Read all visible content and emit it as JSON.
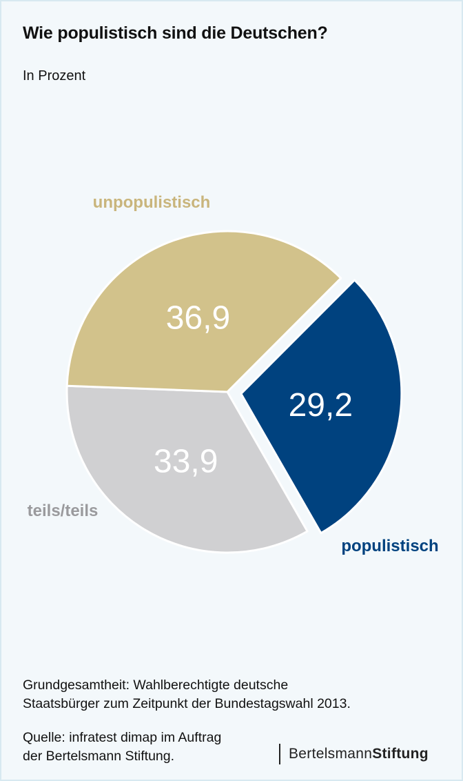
{
  "title": "Wie populistisch sind die Deutschen?",
  "subtitle": "In Prozent",
  "chart_data": {
    "type": "pie",
    "unit": "%",
    "slices": [
      {
        "label": "populistisch",
        "value": 29.2,
        "value_label": "29,2",
        "color": "#00427f",
        "label_color": "#00427f",
        "exploded": true
      },
      {
        "label": "teils/teils",
        "value": 33.9,
        "value_label": "33,9",
        "color": "#d0d0d2",
        "label_color": "#9a9a9d",
        "exploded": false
      },
      {
        "label": "unpopulistisch",
        "value": 36.9,
        "value_label": "36,9",
        "color": "#d2c28b",
        "label_color": "#c9b57c",
        "exploded": false
      }
    ]
  },
  "footnote": {
    "base_line1": "Grundgesamtheit: Wahlberechtigte deutsche",
    "base_line2": "Staatsbürger zum Zeitpunkt der Bundestagswahl 2013.",
    "source_line1": "Quelle: infratest dimap im Auftrag",
    "source_line2": "der Bertelsmann Stiftung."
  },
  "logo": {
    "part1": "Bertelsmann",
    "part2": "Stiftung"
  },
  "colors": {
    "background": "#f3f8fb",
    "border": "#d7e9f1"
  }
}
